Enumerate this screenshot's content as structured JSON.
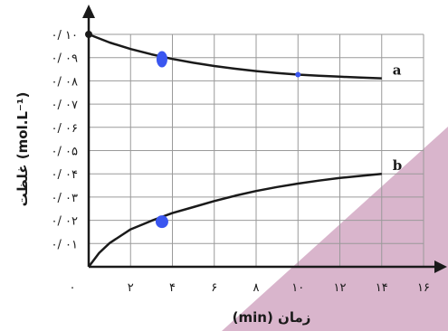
{
  "chart_data": {
    "type": "line",
    "xlabel": "زمان (min)",
    "ylabel": "غلظت (mol.L⁻¹)",
    "xlim": [
      0,
      16
    ],
    "ylim": [
      0,
      0.1
    ],
    "x_ticks": [
      {
        "value": 0,
        "label": "۰"
      },
      {
        "value": 2,
        "label": "۲"
      },
      {
        "value": 4,
        "label": "۴"
      },
      {
        "value": 6,
        "label": "۶"
      },
      {
        "value": 8,
        "label": "۸"
      },
      {
        "value": 10,
        "label": "۱۰"
      },
      {
        "value": 12,
        "label": "۱۲"
      },
      {
        "value": 14,
        "label": "۱۴"
      },
      {
        "value": 16,
        "label": "۱۶"
      }
    ],
    "y_ticks": [
      {
        "value": 0.01,
        "label": "۰/ ۰۱"
      },
      {
        "value": 0.02,
        "label": "۰/ ۰۲"
      },
      {
        "value": 0.03,
        "label": "۰/ ۰۳"
      },
      {
        "value": 0.04,
        "label": "۰/ ۰۴"
      },
      {
        "value": 0.05,
        "label": "۰/ ۰۵"
      },
      {
        "value": 0.06,
        "label": "۰/ ۰۶"
      },
      {
        "value": 0.07,
        "label": "۰/ ۰۷"
      },
      {
        "value": 0.08,
        "label": "۰/ ۰۸"
      },
      {
        "value": 0.09,
        "label": "۰/ ۰۹"
      },
      {
        "value": 0.1,
        "label": "۰/ ۱۰"
      }
    ],
    "grid": true,
    "series": [
      {
        "name": "a",
        "color": "#1a1a1a",
        "x": [
          0,
          1,
          2,
          3,
          4,
          5,
          6,
          7,
          8,
          9,
          10,
          11,
          12,
          13,
          14
        ],
        "y": [
          0.1,
          0.0965,
          0.0937,
          0.0914,
          0.0894,
          0.0878,
          0.0864,
          0.0852,
          0.0842,
          0.0834,
          0.0827,
          0.0822,
          0.0818,
          0.0814,
          0.0811
        ]
      },
      {
        "name": "b",
        "color": "#1a1a1a",
        "x": [
          0,
          0.5,
          1,
          2,
          3,
          4,
          5,
          6,
          7,
          8,
          9,
          10,
          11,
          12,
          13,
          14
        ],
        "y": [
          0,
          0.006,
          0.0102,
          0.0161,
          0.0198,
          0.0231,
          0.0257,
          0.0283,
          0.0306,
          0.0326,
          0.0343,
          0.0358,
          0.0371,
          0.0382,
          0.0391,
          0.04
        ]
      }
    ],
    "markers": [
      {
        "x": 3.5,
        "y": 0.0893,
        "rx": 6,
        "ry": 9,
        "color": "#3a56f0"
      },
      {
        "x": 3.5,
        "y": 0.0194,
        "rx": 7,
        "ry": 7,
        "color": "#3a56f0"
      },
      {
        "x": 10,
        "y": 0.0827,
        "rx": 3,
        "ry": 3,
        "color": "#3a56f0"
      }
    ],
    "decoration_color": "#d9b5cc"
  }
}
